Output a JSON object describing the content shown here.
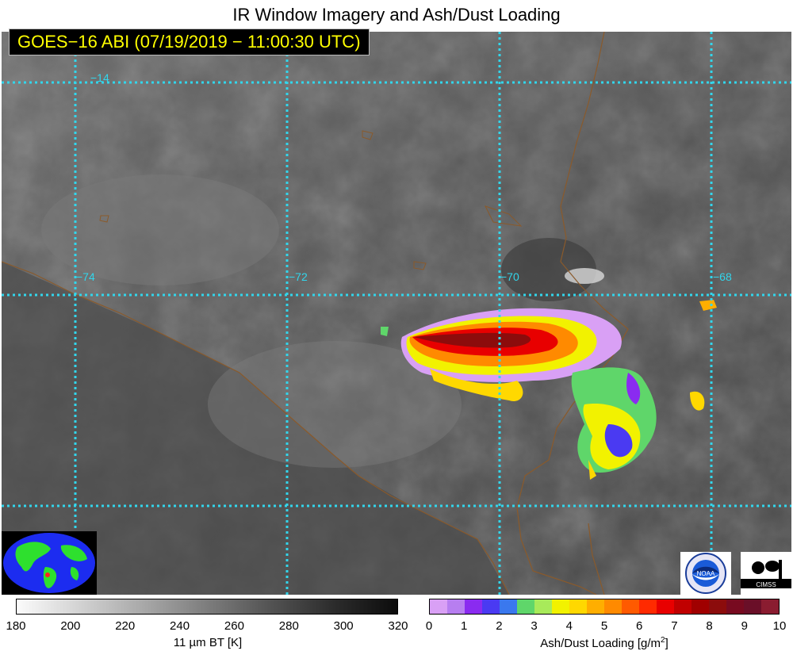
{
  "title": "IR Window Imagery and Ash/Dust Loading",
  "subtitle": "GOES−16 ABI (07/19/2019 − 11:00:30 UTC)",
  "grid_labels": {
    "lat_top": "−14",
    "lon_74": "−74",
    "lon_72": "−72",
    "lon_70": "−70",
    "lon_68": "−68"
  },
  "colorbars": {
    "ir": {
      "ticks": [
        "180",
        "200",
        "220",
        "240",
        "260",
        "280",
        "300",
        "320"
      ],
      "label": "11 µm BT [K]"
    },
    "ash": {
      "ticks": [
        "0",
        "1",
        "2",
        "3",
        "4",
        "5",
        "6",
        "7",
        "8",
        "9",
        "10"
      ],
      "label_main": "Ash/Dust Loading [g/m",
      "label_sup": "2",
      "label_end": "]",
      "colors": [
        "#d9a0f5",
        "#b77ef0",
        "#8a2bf0",
        "#4a3af2",
        "#3a78ee",
        "#5fd66a",
        "#a8ea5a",
        "#f2f200",
        "#ffd800",
        "#ffae00",
        "#ff8a00",
        "#ff5a00",
        "#ff2a00",
        "#e80000",
        "#c00000",
        "#a00000",
        "#8c0c0c",
        "#780a20",
        "#6a0f28",
        "#8a1c30"
      ]
    }
  },
  "logos": {
    "noaa": "NOAA",
    "cimss": "CIMSS"
  },
  "colors": {
    "grid": "#32d6ec",
    "border": "#8a5a2b",
    "subtitle_text": "#ffff00"
  }
}
